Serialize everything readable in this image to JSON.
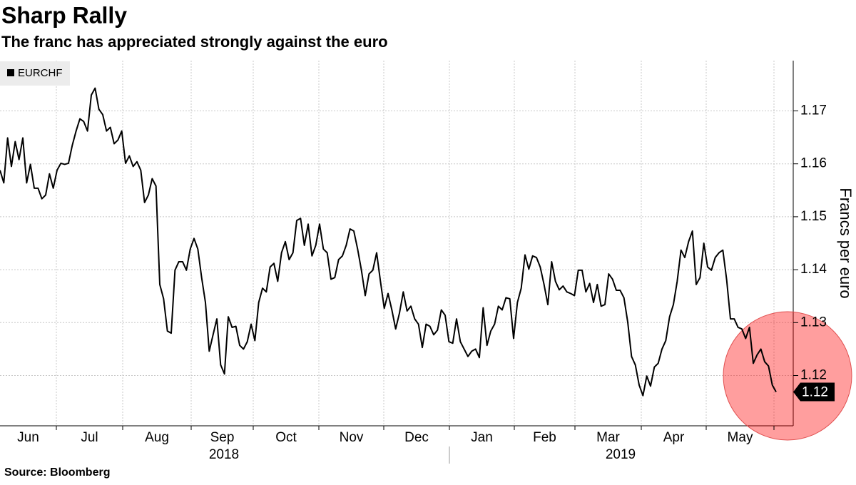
{
  "chart_data": {
    "type": "line",
    "title": "Sharp Rally",
    "subtitle": "The franc has appreciated strongly against the euro",
    "source": "Source: Bloomberg",
    "y_label": "Francs per euro",
    "months": [
      "Jun",
      "Jul",
      "Aug",
      "Sep",
      "Oct",
      "Nov",
      "Dec",
      "Jan",
      "Feb",
      "Mar",
      "Apr",
      "May"
    ],
    "years": [
      "2018",
      "2019"
    ],
    "series": [
      {
        "name": "EURCHF",
        "color": "#000000",
        "end_label": "1.12",
        "values": [
          1.1588,
          1.1564,
          1.1649,
          1.1595,
          1.1642,
          1.1608,
          1.1649,
          1.1564,
          1.1599,
          1.1554,
          1.1554,
          1.1534,
          1.1541,
          1.1581,
          1.1554,
          1.1588,
          1.1601,
          1.1599,
          1.1601,
          1.1635,
          1.1662,
          1.1685,
          1.168,
          1.1662,
          1.173,
          1.1743,
          1.1703,
          1.1693,
          1.1662,
          1.1669,
          1.1638,
          1.1645,
          1.1662,
          1.1601,
          1.1615,
          1.1595,
          1.1604,
          1.1588,
          1.1527,
          1.1541,
          1.1572,
          1.1558,
          1.1372,
          1.1345,
          1.1284,
          1.128,
          1.1399,
          1.1415,
          1.1415,
          1.1399,
          1.1439,
          1.1459,
          1.1439,
          1.1385,
          1.1338,
          1.1246,
          1.1277,
          1.1307,
          1.122,
          1.1203,
          1.1311,
          1.1291,
          1.1293,
          1.1257,
          1.125,
          1.1264,
          1.1297,
          1.1266,
          1.1338,
          1.1365,
          1.1358,
          1.1405,
          1.1412,
          1.1378,
          1.1432,
          1.1453,
          1.1419,
          1.1432,
          1.1493,
          1.1497,
          1.1446,
          1.1486,
          1.1426,
          1.1446,
          1.1486,
          1.1439,
          1.1432,
          1.1382,
          1.1385,
          1.1419,
          1.1426,
          1.1446,
          1.1477,
          1.1473,
          1.1439,
          1.1399,
          1.1351,
          1.1392,
          1.1399,
          1.1432,
          1.1378,
          1.1327,
          1.1355,
          1.1324,
          1.1288,
          1.1318,
          1.1358,
          1.1322,
          1.1331,
          1.1307,
          1.1297,
          1.1253,
          1.1297,
          1.1293,
          1.1277,
          1.1286,
          1.1324,
          1.1314,
          1.1264,
          1.1261,
          1.1307,
          1.1264,
          1.125,
          1.1236,
          1.1246,
          1.125,
          1.1234,
          1.1328,
          1.1257,
          1.1284,
          1.1297,
          1.1331,
          1.1324,
          1.1347,
          1.1345,
          1.127,
          1.1338,
          1.1365,
          1.1428,
          1.1401,
          1.1426,
          1.1423,
          1.1405,
          1.1372,
          1.1334,
          1.1415,
          1.1378,
          1.1362,
          1.1369,
          1.1358,
          1.1355,
          1.1351,
          1.1399,
          1.1399,
          1.1358,
          1.1374,
          1.1338,
          1.1372,
          1.1331,
          1.1334,
          1.1392,
          1.1382,
          1.1361,
          1.1361,
          1.1347,
          1.1301,
          1.1236,
          1.122,
          1.1182,
          1.1162,
          1.1199,
          1.118,
          1.1216,
          1.1223,
          1.125,
          1.1266,
          1.1311,
          1.1334,
          1.1378,
          1.1437,
          1.1423,
          1.1453,
          1.1473,
          1.1372,
          1.1385,
          1.145,
          1.1405,
          1.1399,
          1.1423,
          1.1432,
          1.1437,
          1.1381,
          1.1307,
          1.1307,
          1.1291,
          1.1288,
          1.127,
          1.1291,
          1.1223,
          1.1239,
          1.125,
          1.1226,
          1.1218,
          1.1182,
          1.1169
        ]
      }
    ],
    "ylim": [
      1.1105,
      1.1795
    ],
    "yticks": [
      1.12,
      1.13,
      1.14,
      1.15,
      1.16,
      1.17
    ],
    "grid": true,
    "legend": "top-left"
  }
}
